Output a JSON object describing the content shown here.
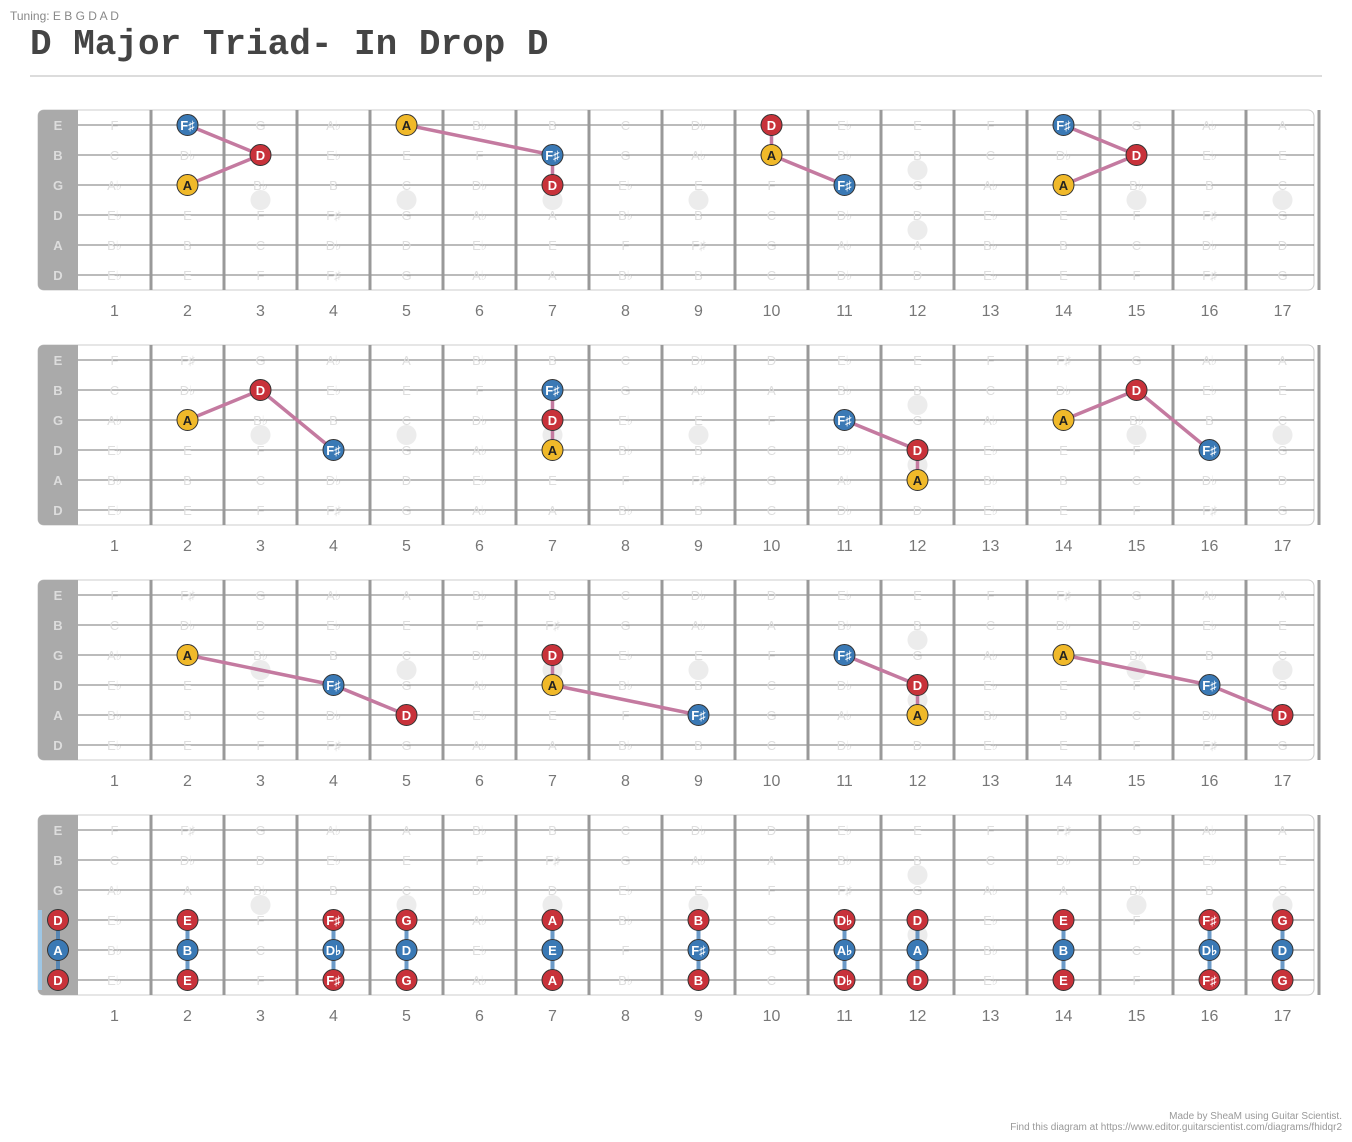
{
  "tuning_label": "Tuning: E B G D A D",
  "title": "D Major Triad- In Drop D",
  "credit_line1": "Made by SheaM using Guitar Scientist.",
  "credit_line2": "Find this diagram at https://www.editor.guitarscientist.com/diagrams/fhidqr2",
  "colors": {
    "D": "#c8323a",
    "A": "#f0b92a",
    "F#": "#3a79b5",
    "link": "#c47aa0",
    "scale": "#3a79b5",
    "nut": "#aaaaaa",
    "open_highlight": "#9ec7e6"
  },
  "string_names": [
    "E",
    "B",
    "G",
    "D",
    "A",
    "D"
  ],
  "fret_numbers": [
    "1",
    "2",
    "3",
    "4",
    "5",
    "6",
    "7",
    "8",
    "9",
    "10",
    "11",
    "12",
    "13",
    "14",
    "15",
    "16",
    "17"
  ],
  "background_notes": [
    [
      "F",
      "F♯",
      "G",
      "A♭",
      "A",
      "B♭",
      "B",
      "C",
      "D♭",
      "D",
      "E♭",
      "E",
      "F",
      "F♯",
      "G",
      "A♭",
      "A"
    ],
    [
      "C",
      "D♭",
      "D",
      "E♭",
      "E",
      "F",
      "F♯",
      "G",
      "A♭",
      "A",
      "B♭",
      "B",
      "C",
      "D♭",
      "D",
      "E♭",
      "E"
    ],
    [
      "A♭",
      "A",
      "B♭",
      "B",
      "C",
      "D♭",
      "D",
      "E♭",
      "E",
      "F",
      "F♯",
      "G",
      "A♭",
      "A",
      "B♭",
      "B",
      "C"
    ],
    [
      "E♭",
      "E",
      "F",
      "F♯",
      "G",
      "A♭",
      "A",
      "B♭",
      "B",
      "C",
      "D♭",
      "D",
      "E♭",
      "E",
      "F",
      "F♯",
      "G"
    ],
    [
      "B♭",
      "B",
      "C",
      "D♭",
      "D",
      "E♭",
      "E",
      "F",
      "F♯",
      "G",
      "A♭",
      "A",
      "B♭",
      "B",
      "C",
      "D♭",
      "D"
    ],
    [
      "E♭",
      "E",
      "F",
      "F♯",
      "G",
      "A♭",
      "A",
      "B♭",
      "B",
      "C",
      "D♭",
      "D",
      "E♭",
      "E",
      "F",
      "F♯",
      "G"
    ]
  ],
  "inlay_frets": [
    "3",
    "5",
    "7",
    "9",
    "12",
    "15",
    "17"
  ],
  "diagrams": [
    {
      "notes": [
        {
          "s": 0,
          "f": 2,
          "n": "F♯",
          "c": "F#"
        },
        {
          "s": 1,
          "f": 3,
          "n": "D",
          "c": "D"
        },
        {
          "s": 2,
          "f": 2,
          "n": "A",
          "c": "A"
        },
        {
          "s": 0,
          "f": 5,
          "n": "A",
          "c": "A"
        },
        {
          "s": 1,
          "f": 7,
          "n": "F♯",
          "c": "F#"
        },
        {
          "s": 2,
          "f": 7,
          "n": "D",
          "c": "D"
        },
        {
          "s": 0,
          "f": 10,
          "n": "D",
          "c": "D"
        },
        {
          "s": 1,
          "f": 10,
          "n": "A",
          "c": "A"
        },
        {
          "s": 2,
          "f": 11,
          "n": "F♯",
          "c": "F#"
        },
        {
          "s": 0,
          "f": 14,
          "n": "F♯",
          "c": "F#"
        },
        {
          "s": 1,
          "f": 15,
          "n": "D",
          "c": "D"
        },
        {
          "s": 2,
          "f": 14,
          "n": "A",
          "c": "A"
        }
      ],
      "links": [
        [
          [
            0,
            2
          ],
          [
            1,
            3
          ],
          [
            2,
            2
          ]
        ],
        [
          [
            0,
            5
          ],
          [
            1,
            7
          ],
          [
            2,
            7
          ]
        ],
        [
          [
            0,
            10
          ],
          [
            1,
            10
          ],
          [
            2,
            11
          ]
        ],
        [
          [
            0,
            14
          ],
          [
            1,
            15
          ],
          [
            2,
            14
          ]
        ]
      ]
    },
    {
      "notes": [
        {
          "s": 1,
          "f": 3,
          "n": "D",
          "c": "D"
        },
        {
          "s": 2,
          "f": 2,
          "n": "A",
          "c": "A"
        },
        {
          "s": 3,
          "f": 4,
          "n": "F♯",
          "c": "F#"
        },
        {
          "s": 1,
          "f": 7,
          "n": "F♯",
          "c": "F#"
        },
        {
          "s": 2,
          "f": 7,
          "n": "D",
          "c": "D"
        },
        {
          "s": 3,
          "f": 7,
          "n": "A",
          "c": "A"
        },
        {
          "s": 2,
          "f": 11,
          "n": "F♯",
          "c": "F#"
        },
        {
          "s": 3,
          "f": 12,
          "n": "D",
          "c": "D"
        },
        {
          "s": 4,
          "f": 12,
          "n": "A",
          "c": "A"
        },
        {
          "s": 1,
          "f": 15,
          "n": "D",
          "c": "D"
        },
        {
          "s": 2,
          "f": 14,
          "n": "A",
          "c": "A"
        },
        {
          "s": 3,
          "f": 16,
          "n": "F♯",
          "c": "F#"
        }
      ],
      "links": [
        [
          [
            2,
            2
          ],
          [
            1,
            3
          ],
          [
            3,
            4
          ]
        ],
        [
          [
            1,
            7
          ],
          [
            2,
            7
          ],
          [
            3,
            7
          ]
        ],
        [
          [
            2,
            11
          ],
          [
            3,
            12
          ],
          [
            4,
            12
          ]
        ],
        [
          [
            2,
            14
          ],
          [
            1,
            15
          ],
          [
            3,
            16
          ]
        ]
      ]
    },
    {
      "notes": [
        {
          "s": 2,
          "f": 2,
          "n": "A",
          "c": "A"
        },
        {
          "s": 3,
          "f": 4,
          "n": "F♯",
          "c": "F#"
        },
        {
          "s": 4,
          "f": 5,
          "n": "D",
          "c": "D"
        },
        {
          "s": 2,
          "f": 7,
          "n": "D",
          "c": "D"
        },
        {
          "s": 3,
          "f": 7,
          "n": "A",
          "c": "A"
        },
        {
          "s": 4,
          "f": 9,
          "n": "F♯",
          "c": "F#"
        },
        {
          "s": 2,
          "f": 11,
          "n": "F♯",
          "c": "F#"
        },
        {
          "s": 3,
          "f": 12,
          "n": "D",
          "c": "D"
        },
        {
          "s": 4,
          "f": 12,
          "n": "A",
          "c": "A"
        },
        {
          "s": 2,
          "f": 14,
          "n": "A",
          "c": "A"
        },
        {
          "s": 3,
          "f": 16,
          "n": "F♯",
          "c": "F#"
        },
        {
          "s": 4,
          "f": 17,
          "n": "D",
          "c": "D"
        }
      ],
      "links": [
        [
          [
            2,
            2
          ],
          [
            3,
            4
          ],
          [
            4,
            5
          ]
        ],
        [
          [
            2,
            7
          ],
          [
            3,
            7
          ],
          [
            4,
            9
          ]
        ],
        [
          [
            2,
            11
          ],
          [
            3,
            12
          ],
          [
            4,
            12
          ]
        ],
        [
          [
            2,
            14
          ],
          [
            3,
            16
          ],
          [
            4,
            17
          ]
        ]
      ]
    },
    {
      "open_strings": [
        3,
        4,
        5
      ],
      "notes": [
        {
          "s": 3,
          "f": 0,
          "n": "D",
          "c": "D"
        },
        {
          "s": 4,
          "f": 0,
          "n": "A",
          "c": "F#"
        },
        {
          "s": 5,
          "f": 0,
          "n": "D",
          "c": "D"
        },
        {
          "s": 3,
          "f": 2,
          "n": "E",
          "c": "D"
        },
        {
          "s": 4,
          "f": 2,
          "n": "B",
          "c": "F#"
        },
        {
          "s": 5,
          "f": 2,
          "n": "E",
          "c": "D"
        },
        {
          "s": 3,
          "f": 4,
          "n": "F♯",
          "c": "D"
        },
        {
          "s": 4,
          "f": 4,
          "n": "D♭",
          "c": "F#"
        },
        {
          "s": 5,
          "f": 4,
          "n": "F♯",
          "c": "D"
        },
        {
          "s": 3,
          "f": 5,
          "n": "G",
          "c": "D"
        },
        {
          "s": 4,
          "f": 5,
          "n": "D",
          "c": "F#"
        },
        {
          "s": 5,
          "f": 5,
          "n": "G",
          "c": "D"
        },
        {
          "s": 3,
          "f": 7,
          "n": "A",
          "c": "D"
        },
        {
          "s": 4,
          "f": 7,
          "n": "E",
          "c": "F#"
        },
        {
          "s": 5,
          "f": 7,
          "n": "A",
          "c": "D"
        },
        {
          "s": 3,
          "f": 9,
          "n": "B",
          "c": "D"
        },
        {
          "s": 4,
          "f": 9,
          "n": "F♯",
          "c": "F#"
        },
        {
          "s": 5,
          "f": 9,
          "n": "B",
          "c": "D"
        },
        {
          "s": 3,
          "f": 11,
          "n": "D♭",
          "c": "D"
        },
        {
          "s": 4,
          "f": 11,
          "n": "A♭",
          "c": "F#"
        },
        {
          "s": 5,
          "f": 11,
          "n": "D♭",
          "c": "D"
        },
        {
          "s": 3,
          "f": 12,
          "n": "D",
          "c": "D"
        },
        {
          "s": 4,
          "f": 12,
          "n": "A",
          "c": "F#"
        },
        {
          "s": 5,
          "f": 12,
          "n": "D",
          "c": "D"
        },
        {
          "s": 3,
          "f": 14,
          "n": "E",
          "c": "D"
        },
        {
          "s": 4,
          "f": 14,
          "n": "B",
          "c": "F#"
        },
        {
          "s": 5,
          "f": 14,
          "n": "E",
          "c": "D"
        },
        {
          "s": 3,
          "f": 16,
          "n": "F♯",
          "c": "D"
        },
        {
          "s": 4,
          "f": 16,
          "n": "D♭",
          "c": "F#"
        },
        {
          "s": 5,
          "f": 16,
          "n": "F♯",
          "c": "D"
        },
        {
          "s": 3,
          "f": 17,
          "n": "G",
          "c": "D"
        },
        {
          "s": 4,
          "f": 17,
          "n": "D",
          "c": "F#"
        },
        {
          "s": 5,
          "f": 17,
          "n": "G",
          "c": "D"
        }
      ],
      "scale_links": [
        0,
        2,
        4,
        5,
        7,
        9,
        11,
        12,
        14,
        16,
        17
      ]
    }
  ]
}
